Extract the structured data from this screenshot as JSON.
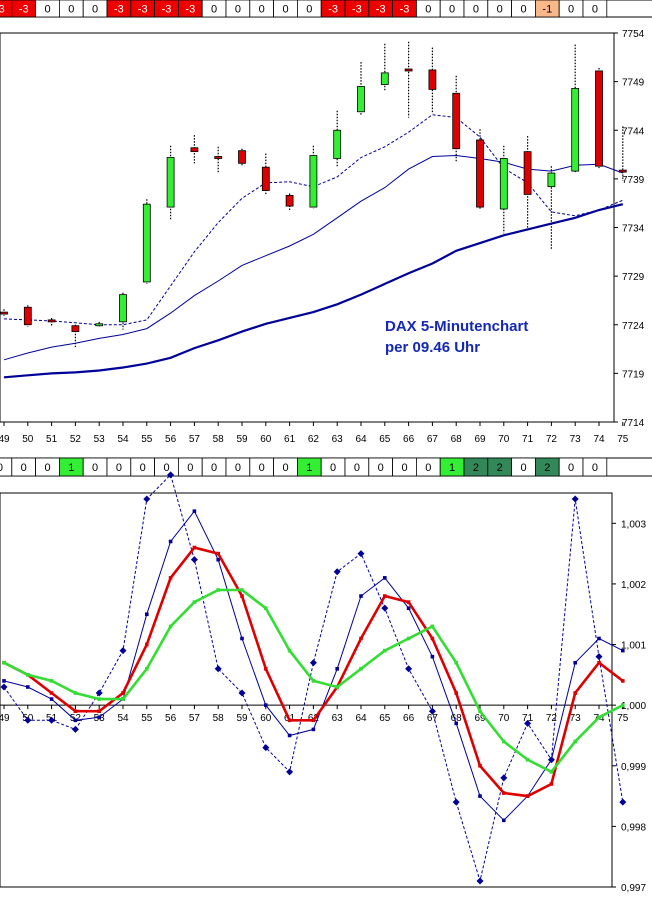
{
  "annotation": [
    "DAX 5-Minutenchart",
    "per 09.46 Uhr"
  ],
  "colors": {
    "up": "#33ee33",
    "down": "#dd0000",
    "ma_blue": "#000099",
    "osc_red": "#dd0000",
    "osc_green": "#33dd33",
    "osc_blue": "#000099",
    "cell_red": "#ee0000",
    "cell_orange": "#f8b888",
    "cell_green": "#33ee33",
    "cell_darkgreen": "#33885a"
  },
  "top_row": {
    "values": [
      "-3",
      "-3",
      "0",
      "0",
      "0",
      "-3",
      "-3",
      "-3",
      "-3",
      "0",
      "0",
      "0",
      "0",
      "0",
      "-3",
      "-3",
      "-3",
      "-3",
      "0",
      "0",
      "0",
      "0",
      "0",
      "-1",
      "0",
      "0"
    ],
    "styles": [
      "red",
      "red",
      "white",
      "white",
      "white",
      "red",
      "red",
      "red",
      "red",
      "white",
      "white",
      "white",
      "white",
      "white",
      "red",
      "red",
      "red",
      "red",
      "white",
      "white",
      "white",
      "white",
      "white",
      "orange",
      "white",
      "white"
    ]
  },
  "mid_row": {
    "values": [
      "0",
      "0",
      "0",
      "1",
      "0",
      "0",
      "0",
      "0",
      "0",
      "0",
      "0",
      "0",
      "0",
      "1",
      "0",
      "0",
      "0",
      "0",
      "0",
      "1",
      "2",
      "2",
      "0",
      "2",
      "0",
      "0"
    ],
    "styles": [
      "white",
      "white",
      "white",
      "green",
      "white",
      "white",
      "white",
      "white",
      "white",
      "white",
      "white",
      "white",
      "white",
      "green",
      "white",
      "white",
      "white",
      "white",
      "white",
      "green",
      "darkgreen",
      "darkgreen",
      "white",
      "darkgreen",
      "white",
      "white"
    ]
  },
  "chart_data": [
    {
      "type": "candlestick",
      "x": [
        49,
        50,
        51,
        52,
        53,
        54,
        55,
        56,
        57,
        58,
        59,
        60,
        61,
        62,
        63,
        64,
        65,
        66,
        67,
        68,
        69,
        70,
        71,
        72,
        73,
        74,
        75
      ],
      "x_tick_labels": [
        "49",
        "50",
        "51",
        "52",
        "53",
        "54",
        "55",
        "56",
        "57",
        "58",
        "59",
        "60",
        "61",
        "62",
        "63",
        "64",
        "65",
        "66",
        "67",
        "68",
        "69",
        "70",
        "71",
        "72",
        "73",
        "74",
        "75"
      ],
      "y_tick_labels": [
        "7754",
        "7749",
        "7744",
        "7739",
        "7734",
        "7729",
        "7724",
        "7719",
        "7714"
      ],
      "ylim": [
        7714,
        7754
      ],
      "candles": [
        {
          "x": 49,
          "open": 7725.3,
          "close": 7725.1,
          "high": 7725.6,
          "low": 7724.9
        },
        {
          "x": 50,
          "open": 7725.8,
          "close": 7724.0,
          "high": 7726.0,
          "low": 7723.8
        },
        {
          "x": 51,
          "open": 7724.5,
          "close": 7724.3,
          "high": 7724.7,
          "low": 7723.9
        },
        {
          "x": 52,
          "open": 7723.9,
          "close": 7723.3,
          "high": 7724.0,
          "low": 7721.7
        },
        {
          "x": 53,
          "open": 7723.9,
          "close": 7724.1,
          "high": 7724.3,
          "low": 7723.7
        },
        {
          "x": 54,
          "open": 7724.3,
          "close": 7727.1,
          "high": 7727.3,
          "low": 7723.5
        },
        {
          "x": 55,
          "open": 7728.4,
          "close": 7736.4,
          "high": 7736.9,
          "low": 7728.2
        },
        {
          "x": 56,
          "open": 7736.1,
          "close": 7741.2,
          "high": 7742.4,
          "low": 7734.8
        },
        {
          "x": 57,
          "open": 7742.2,
          "close": 7741.8,
          "high": 7743.5,
          "low": 7740.6
        },
        {
          "x": 58,
          "open": 7741.3,
          "close": 7741.2,
          "high": 7742.3,
          "low": 7739.6
        },
        {
          "x": 59,
          "open": 7741.9,
          "close": 7740.6,
          "high": 7742.1,
          "low": 7740.4
        },
        {
          "x": 60,
          "open": 7740.2,
          "close": 7737.8,
          "high": 7741.6,
          "low": 7737.3
        },
        {
          "x": 61,
          "open": 7737.3,
          "close": 7736.2,
          "high": 7737.5,
          "low": 7735.8
        },
        {
          "x": 62,
          "open": 7736.1,
          "close": 7741.4,
          "high": 7742.4,
          "low": 7735.9
        },
        {
          "x": 63,
          "open": 7741.1,
          "close": 7744.0,
          "high": 7746.0,
          "low": 7740.3
        },
        {
          "x": 64,
          "open": 7745.9,
          "close": 7748.5,
          "high": 7751.0,
          "low": 7745.6
        },
        {
          "x": 65,
          "open": 7748.7,
          "close": 7749.9,
          "high": 7752.9,
          "low": 7748.0
        },
        {
          "x": 66,
          "open": 7750.3,
          "close": 7750.2,
          "high": 7753.1,
          "low": 7745.3
        },
        {
          "x": 67,
          "open": 7750.2,
          "close": 7748.2,
          "high": 7752.5,
          "low": 7745.7
        },
        {
          "x": 68,
          "open": 7747.8,
          "close": 7742.1,
          "high": 7749.6,
          "low": 7740.8
        },
        {
          "x": 69,
          "open": 7743.0,
          "close": 7736.1,
          "high": 7744.1,
          "low": 7735.9
        },
        {
          "x": 70,
          "open": 7735.9,
          "close": 7741.1,
          "high": 7742.4,
          "low": 7733.4
        },
        {
          "x": 71,
          "open": 7741.8,
          "close": 7737.4,
          "high": 7743.4,
          "low": 7733.7
        },
        {
          "x": 72,
          "open": 7738.2,
          "close": 7739.6,
          "high": 7740.3,
          "low": 7731.8
        },
        {
          "x": 73,
          "open": 7739.8,
          "close": 7748.3,
          "high": 7752.8,
          "low": 7739.6
        },
        {
          "x": 74,
          "open": 7750.1,
          "close": 7740.3,
          "high": 7750.4,
          "low": 7740.1
        },
        {
          "x": 75,
          "open": 7739.9,
          "close": 7739.7,
          "high": 7744.4,
          "low": 7738.8
        }
      ],
      "series": [
        {
          "style": "dashed",
          "values": [
            7724.6,
            7724.5,
            7724.4,
            7724.2,
            7724.0,
            7724.0,
            7724.5,
            7728.0,
            7731.5,
            7734.5,
            7737.0,
            7738.6,
            7738.7,
            7738.2,
            7739.2,
            7741.2,
            7742.3,
            7743.8,
            7745.6,
            7745.3,
            7743.3,
            7740.1,
            7738.6,
            7735.6,
            7735.2,
            7735.8,
            7736.8
          ]
        },
        {
          "style": "solid",
          "values": [
            7720.4,
            7721.1,
            7721.7,
            7722.1,
            7722.6,
            7723.0,
            7723.6,
            7725.2,
            7727.0,
            7728.5,
            7730.1,
            7731.1,
            7732.1,
            7733.3,
            7735.0,
            7736.7,
            7738.1,
            7740.0,
            7741.3,
            7741.4,
            7741.1,
            7740.7,
            7740.0,
            7739.8,
            7740.4,
            7740.5,
            7739.6
          ]
        },
        {
          "style": "thick",
          "values": [
            7718.6,
            7718.8,
            7719.0,
            7719.1,
            7719.3,
            7719.6,
            7720.0,
            7720.6,
            7721.6,
            7722.4,
            7723.3,
            7724.1,
            7724.7,
            7725.3,
            7726.1,
            7727.1,
            7728.2,
            7729.3,
            7730.3,
            7731.6,
            7732.4,
            7733.2,
            7733.8,
            7734.4,
            7735.0,
            7735.8,
            7736.4
          ]
        }
      ]
    },
    {
      "type": "line",
      "x": [
        49,
        50,
        51,
        52,
        53,
        54,
        55,
        56,
        57,
        58,
        59,
        60,
        61,
        62,
        63,
        64,
        65,
        66,
        67,
        68,
        69,
        70,
        71,
        72,
        73,
        74,
        75
      ],
      "x_tick_labels": [
        "49",
        "50",
        "51",
        "52",
        "53",
        "54",
        "55",
        "56",
        "57",
        "58",
        "59",
        "60",
        "61",
        "62",
        "63",
        "64",
        "65",
        "66",
        "67",
        "68",
        "69",
        "70",
        "71",
        "72",
        "73",
        "74",
        "75"
      ],
      "y_tick_labels": [
        "1,003",
        "1,002",
        "1,001",
        "1,000",
        "0,999",
        "0,998",
        "0,997"
      ],
      "ylim": [
        0.997,
        1.0035
      ],
      "series": [
        {
          "color": "osc_blue",
          "style": "dashed",
          "marker": "diamond",
          "values": [
            1.0003,
            0.99975,
            0.99975,
            0.9996,
            1.0002,
            1.0009,
            1.0034,
            1.0038,
            1.0024,
            1.0006,
            1.0002,
            0.9993,
            0.9989,
            1.0007,
            1.0022,
            1.0025,
            1.0016,
            1.0006,
            0.9999,
            0.9984,
            0.9971,
            0.9988,
            0.9997,
            0.9991,
            1.0034,
            1.0008,
            0.9984
          ]
        },
        {
          "color": "osc_blue",
          "style": "solid",
          "marker": "square",
          "values": [
            1.0004,
            1.0003,
            1.0001,
            0.99975,
            0.9998,
            1.0001,
            1.0015,
            1.0027,
            1.0032,
            1.0024,
            1.0011,
            1.0,
            0.9995,
            0.9996,
            1.0006,
            1.0018,
            1.0021,
            1.0016,
            1.0008,
            0.9997,
            0.9985,
            0.9981,
            0.9985,
            0.9991,
            1.0007,
            1.0011,
            1.0009
          ]
        },
        {
          "color": "osc_red",
          "style": "thick",
          "marker": "square",
          "values": [
            1.0007,
            1.0005,
            1.0002,
            0.9999,
            0.9999,
            1.0002,
            1.001,
            1.0021,
            1.0026,
            1.0025,
            1.0018,
            1.0006,
            0.99975,
            0.99975,
            1.0003,
            1.0011,
            1.0018,
            1.0017,
            1.0011,
            1.0002,
            0.999,
            0.99855,
            0.9985,
            0.9987,
            1.0002,
            1.0007,
            1.0004
          ]
        },
        {
          "color": "osc_green",
          "style": "thick",
          "marker": "square",
          "values": [
            1.0007,
            1.0005,
            1.0004,
            1.0002,
            1.0001,
            1.0001,
            1.0006,
            1.0013,
            1.0017,
            1.0019,
            1.0019,
            1.0016,
            1.0009,
            1.0004,
            1.0003,
            1.0006,
            1.0009,
            1.0011,
            1.0013,
            1.0007,
            0.9999,
            0.9994,
            0.9991,
            0.9989,
            0.9994,
            0.9998,
            1.0
          ]
        }
      ]
    }
  ]
}
